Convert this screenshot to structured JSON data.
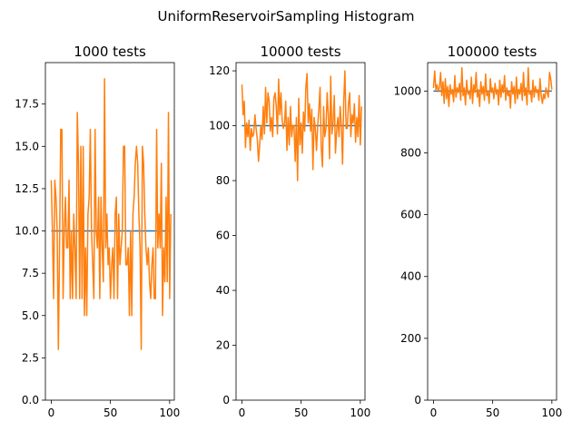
{
  "figure": {
    "title": "UniformReservoirSampling Histogram"
  },
  "colors": {
    "observed": "#ff7f0e",
    "expected": "#1f77b4",
    "axes": "#000000"
  },
  "chart_data": [
    {
      "type": "line",
      "title": "1000 tests",
      "xlabel": "",
      "ylabel": "",
      "xlim": [
        -4.95,
        103.95
      ],
      "ylim": [
        0,
        19.95
      ],
      "xticks": [
        0,
        50,
        100
      ],
      "xtick_labels": [
        "0",
        "50",
        "100"
      ],
      "yticks": [
        0,
        2.5,
        5,
        7.5,
        10,
        12.5,
        15,
        17.5
      ],
      "ytick_labels": [
        "0.0",
        "2.5",
        "5.0",
        "7.5",
        "10.0",
        "12.5",
        "15.0",
        "17.5"
      ],
      "grid": false,
      "series": [
        {
          "role": "expected",
          "values": [
            10,
            10
          ]
        },
        {
          "role": "observed",
          "values": [
            13,
            10,
            6,
            13,
            12,
            10,
            3,
            9,
            16,
            16,
            6,
            10,
            12,
            9,
            9,
            13,
            6,
            10,
            6,
            11,
            9,
            6,
            17,
            14,
            6,
            15,
            6,
            15,
            5,
            9,
            5,
            11,
            12,
            16,
            10,
            8,
            6,
            16,
            10,
            9,
            12,
            6,
            12,
            9,
            7,
            19,
            9,
            11,
            8,
            9,
            6,
            8,
            9,
            6,
            11,
            12,
            6,
            11,
            8,
            9,
            10,
            15,
            15,
            8,
            8,
            9,
            5,
            10,
            5,
            11,
            12,
            14,
            15,
            14,
            11,
            9,
            3,
            15,
            14,
            11,
            9,
            8,
            9,
            7,
            6,
            8,
            9,
            6,
            6,
            16,
            9,
            11,
            9,
            14,
            5,
            9,
            7,
            12,
            7,
            17,
            6,
            11
          ]
        }
      ]
    },
    {
      "type": "line",
      "title": "10000 tests",
      "xlabel": "",
      "ylabel": "",
      "xlim": [
        -4.95,
        103.95
      ],
      "ylim": [
        0,
        123.0
      ],
      "xticks": [
        0,
        50,
        100
      ],
      "xtick_labels": [
        "0",
        "50",
        "100"
      ],
      "yticks": [
        0,
        20,
        40,
        60,
        80,
        100,
        120
      ],
      "ytick_labels": [
        "0",
        "20",
        "40",
        "60",
        "80",
        "100",
        "120"
      ],
      "grid": false,
      "series": [
        {
          "role": "expected",
          "values": [
            100,
            100
          ]
        },
        {
          "role": "observed",
          "values": [
            115,
            104,
            109,
            92,
            101,
            96,
            102,
            91,
            99,
            96,
            97,
            104,
            99,
            95,
            87,
            93,
            100,
            95,
            107,
            97,
            114,
            101,
            112,
            109,
            98,
            103,
            96,
            110,
            112,
            107,
            97,
            117,
            104,
            112,
            102,
            99,
            101,
            109,
            91,
            103,
            93,
            107,
            96,
            100,
            100,
            87,
            103,
            80,
            110,
            93,
            101,
            90,
            105,
            98,
            114,
            119,
            101,
            108,
            98,
            106,
            84,
            103,
            99,
            91,
            100,
            106,
            114,
            92,
            85,
            107,
            96,
            99,
            112,
            104,
            88,
            118,
            97,
            101,
            111,
            90,
            98,
            103,
            96,
            107,
            100,
            86,
            109,
            120,
            99,
            99,
            108,
            112,
            96,
            104,
            101,
            108,
            94,
            103,
            96,
            111,
            93,
            107
          ]
        }
      ]
    },
    {
      "type": "line",
      "title": "100000 tests",
      "xlabel": "",
      "ylabel": "",
      "xlim": [
        -4.95,
        103.95
      ],
      "ylim": [
        0,
        1092
      ],
      "xticks": [
        0,
        50,
        100
      ],
      "xtick_labels": [
        "0",
        "50",
        "100"
      ],
      "yticks": [
        0,
        200,
        400,
        600,
        800,
        1000
      ],
      "ytick_labels": [
        "0",
        "200",
        "400",
        "600",
        "800",
        "1000"
      ],
      "grid": false,
      "series": [
        {
          "role": "expected",
          "values": [
            1000,
            1000
          ]
        },
        {
          "role": "observed",
          "values": [
            1010,
            1065,
            1005,
            1020,
            998,
            1012,
            1060,
            985,
            1030,
            960,
            1040,
            975,
            1015,
            950,
            1020,
            990,
            1005,
            965,
            1050,
            980,
            1010,
            995,
            1025,
            970,
            1075,
            985,
            1010,
            955,
            1035,
            990,
            1000,
            975,
            1045,
            960,
            1020,
            995,
            1060,
            980,
            1005,
            950,
            1030,
            990,
            1015,
            970,
            1055,
            985,
            1000,
            960,
            1040,
            995,
            1010,
            975,
            1025,
            990,
            1005,
            955,
            1035,
            980,
            1020,
            995,
            1050,
            970,
            1010,
            985,
            1000,
            945,
            1030,
            990,
            1015,
            960,
            1045,
            975,
            1005,
            990,
            1025,
            970,
            1060,
            985,
            1010,
            955,
            1075,
            990,
            1000,
            965,
            1035,
            980,
            1015,
            995,
            1005,
            970,
            1040,
            985,
            960,
            990,
            975,
            1010,
            995,
            980,
            1060,
            1040,
            1005
          ]
        }
      ]
    }
  ]
}
